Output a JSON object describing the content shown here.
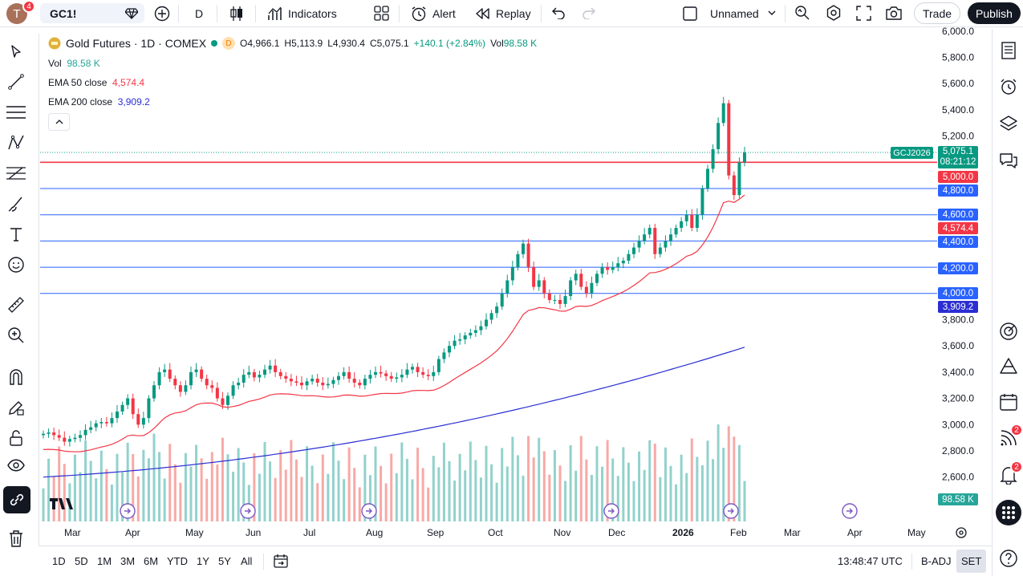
{
  "topbar": {
    "avatar_letter": "T",
    "avatar_badge": "4",
    "symbol": "GC1!",
    "interval": "D",
    "indicators_label": "Indicators",
    "alert_label": "Alert",
    "replay_label": "Replay",
    "layout_name": "Unnamed",
    "trade_label": "Trade",
    "publish_label": "Publish"
  },
  "legend": {
    "title": "Gold Futures · 1D · COMEX",
    "source_badge": "D",
    "open": "O4,966.1",
    "high": "H5,113.9",
    "low": "L4,930.4",
    "close": "C5,075.1",
    "change": "+140.1 (+2.84%)",
    "vol_label": "Vol",
    "vol_value": "98.58 K"
  },
  "indicators": [
    {
      "label": "Vol",
      "value": "98.58 K",
      "color": "#26a69a"
    },
    {
      "label": "EMA 50 close",
      "value": "4,574.4",
      "color": "#f23645"
    },
    {
      "label": "EMA 200 close",
      "value": "3,909.2",
      "color": "#2962ff"
    }
  ],
  "price_axis": {
    "ticks": [
      "6,000.0",
      "5,800.0",
      "5,600.0",
      "5,400.0",
      "5,200.0",
      "3,800.0",
      "3,600.0",
      "3,400.0",
      "3,200.0",
      "3,000.0",
      "2,800.0",
      "2,600.0"
    ]
  },
  "price_tags": [
    {
      "text": "5,075.1",
      "sub": "08:21:12",
      "color": "#089981",
      "name": "last-price-tag"
    },
    {
      "text": "5,000.0",
      "color": "#f23645",
      "name": "level-5000-tag"
    },
    {
      "text": "4,800.0",
      "color": "#2962ff",
      "name": "level-4800-tag"
    },
    {
      "text": "4,600.0",
      "color": "#2962ff",
      "name": "level-4600-tag"
    },
    {
      "text": "4,574.4",
      "color": "#f23645",
      "name": "ema50-tag"
    },
    {
      "text": "4,400.0",
      "color": "#2962ff",
      "name": "level-4400-tag"
    },
    {
      "text": "4,200.0",
      "color": "#2962ff",
      "name": "level-4200-tag"
    },
    {
      "text": "4,000.0",
      "color": "#2962ff",
      "name": "level-4000-tag"
    },
    {
      "text": "3,909.2",
      "color": "#2a2ed2",
      "name": "ema200-tag"
    },
    {
      "text": "98.58 K",
      "color": "#26a69a",
      "name": "volume-tag"
    }
  ],
  "contract_label": "GCJ2026",
  "time_axis": [
    "Mar",
    "Apr",
    "May",
    "Jun",
    "Jul",
    "Aug",
    "Sep",
    "Oct",
    "Nov",
    "Dec",
    "2026",
    "Feb",
    "Mar",
    "Apr",
    "May"
  ],
  "bottombar": {
    "ranges": [
      "1D",
      "5D",
      "1M",
      "3M",
      "6M",
      "YTD",
      "1Y",
      "5Y",
      "All"
    ],
    "clock": "13:48:47 UTC",
    "adjust": "B-ADJ",
    "session": "SET"
  },
  "right_badges": {
    "ideas": "2",
    "alerts": "2"
  },
  "colors": {
    "up": "#089981",
    "down": "#f23645",
    "ema50": "#f23645",
    "ema200": "#2a2ed2",
    "hline_blue": "#2962ff",
    "hline_red": "#f23645"
  },
  "chart_data": {
    "type": "candlestick",
    "title": "Gold Futures · 1D · COMEX",
    "ylim": [
      2550,
      6050
    ],
    "horizontal_lines": [
      5000,
      4800,
      4600,
      4400,
      4200,
      4000
    ],
    "closes": [
      2930,
      2940,
      2920,
      2900,
      2870,
      2890,
      2900,
      2920,
      2960,
      2980,
      3010,
      3020,
      3010,
      3050,
      3100,
      3150,
      3200,
      3080,
      3000,
      3050,
      3200,
      3300,
      3400,
      3420,
      3350,
      3300,
      3250,
      3300,
      3400,
      3420,
      3350,
      3300,
      3280,
      3200,
      3150,
      3220,
      3300,
      3320,
      3380,
      3400,
      3360,
      3380,
      3420,
      3450,
      3400,
      3370,
      3350,
      3330,
      3320,
      3300,
      3330,
      3350,
      3320,
      3300,
      3310,
      3340,
      3370,
      3400,
      3350,
      3320,
      3300,
      3350,
      3380,
      3400,
      3390,
      3370,
      3350,
      3360,
      3380,
      3420,
      3440,
      3400,
      3380,
      3370,
      3400,
      3500,
      3550,
      3600,
      3640,
      3650,
      3680,
      3700,
      3720,
      3750,
      3800,
      3850,
      3900,
      4000,
      4100,
      4200,
      4300,
      4380,
      4200,
      4050,
      4100,
      4000,
      3950,
      3950,
      3920,
      3980,
      4100,
      4150,
      4050,
      4000,
      4080,
      4150,
      4200,
      4180,
      4200,
      4230,
      4250,
      4300,
      4350,
      4400,
      4450,
      4500,
      4300,
      4350,
      4400,
      4450,
      4500,
      4550,
      4600,
      4500,
      4600,
      4800,
      4950,
      5100,
      5300,
      5450,
      4900,
      4750,
      5000,
      5075
    ]
  }
}
